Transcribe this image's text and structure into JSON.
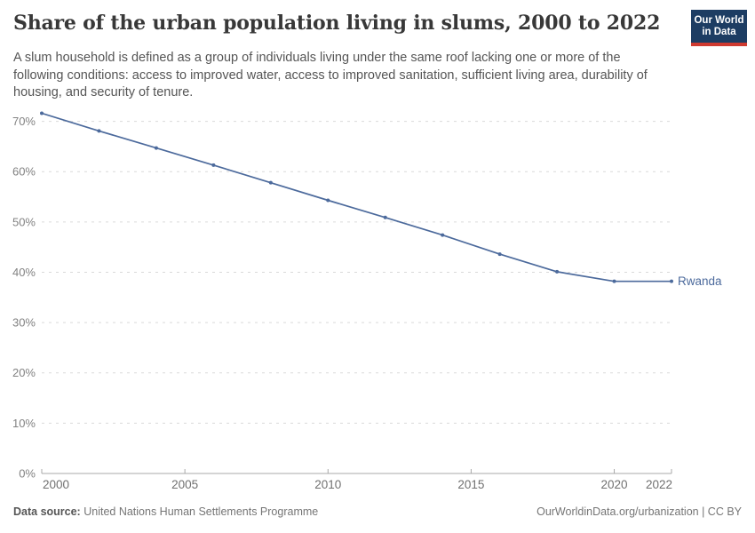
{
  "header": {
    "title": "Share of the urban population living in slums, 2000 to 2022",
    "subtitle": "A slum household is defined as a group of individuals living under the same roof lacking one or more of the following conditions: access to improved water, access to improved sanitation, sufficient living area, durability of housing, and security of tenure.",
    "logo": {
      "line1": "Our World",
      "line2": "in Data"
    }
  },
  "chart_data": {
    "type": "line",
    "title": "Share of the urban population living in slums, 2000 to 2022",
    "x": [
      2000,
      2002,
      2004,
      2006,
      2008,
      2010,
      2012,
      2014,
      2016,
      2018,
      2020,
      2022
    ],
    "series": [
      {
        "name": "Rwanda",
        "values": [
          71.6,
          68.1,
          64.7,
          61.3,
          57.8,
          54.3,
          50.9,
          47.4,
          43.6,
          40.1,
          38.2,
          38.2
        ]
      }
    ],
    "unit": "%",
    "xlim": [
      2000,
      2022
    ],
    "ylim": [
      0,
      73
    ],
    "x_ticks": [
      2000,
      2005,
      2010,
      2015,
      2020,
      2022
    ],
    "y_ticks": [
      0,
      10,
      20,
      30,
      40,
      50,
      60,
      70
    ],
    "grid": true,
    "legend_position": "end-of-line label",
    "colors": {
      "line": "#4c6a9c",
      "entity_label": "#4c6a9c",
      "grid": "#dadada",
      "axis": "#a8a8a8",
      "y_tick_text": "#828282",
      "x_tick_text": "#707070",
      "logo_bg": "#1d3d63",
      "logo_stripe": "#cf3a30"
    }
  },
  "footer": {
    "datasource_label": "Data source:",
    "datasource": "United Nations Human Settlements Programme",
    "link": "OurWorldinData.org/urbanization | CC BY"
  }
}
